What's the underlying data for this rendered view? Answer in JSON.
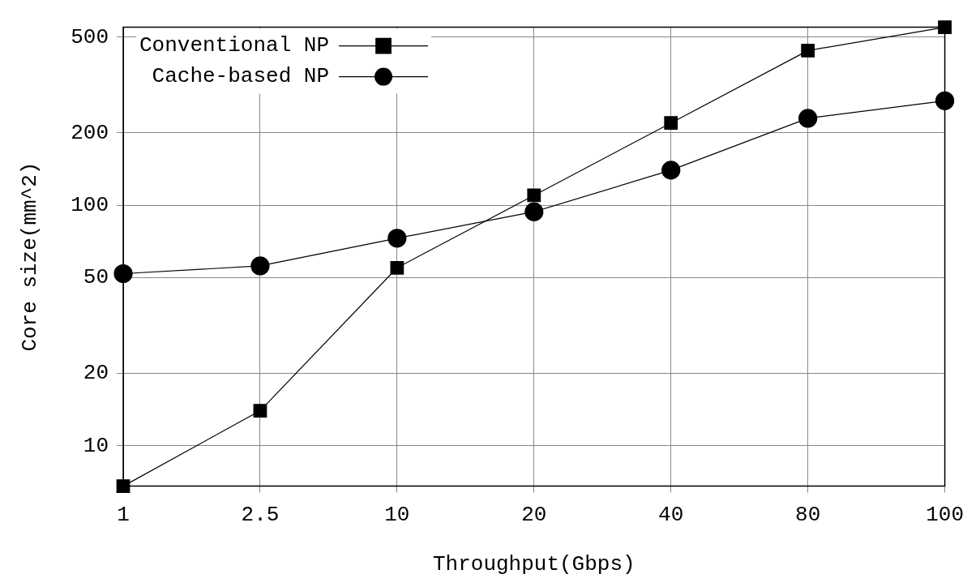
{
  "chart_data": {
    "type": "line",
    "xlabel": "Throughput(Gbps)",
    "ylabel": "Core size(mm^2)",
    "categories": [
      "1",
      "2.5",
      "10",
      "20",
      "40",
      "80",
      "100"
    ],
    "series": [
      {
        "name": "Conventional NP",
        "color": "#000000",
        "marker": "square",
        "values": [
          6.8,
          14,
          55,
          110,
          220,
          440,
          550
        ]
      },
      {
        "name": "Cache-based NP",
        "color": "#000000",
        "marker": "circle",
        "values": [
          52,
          56,
          73,
          94,
          140,
          230,
          272
        ]
      }
    ],
    "log": "y",
    "ylim": [
      6.8,
      550
    ],
    "yticks": [
      10,
      20,
      50,
      100,
      200,
      500
    ],
    "grid": true,
    "legend": "top left",
    "line_style": "solid"
  }
}
